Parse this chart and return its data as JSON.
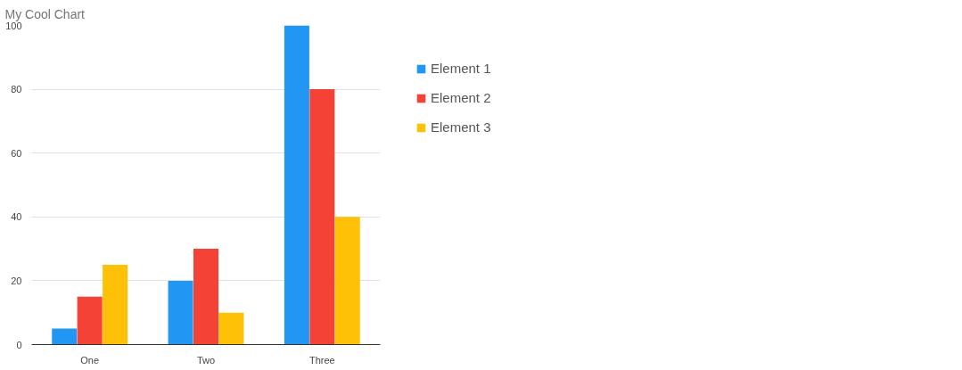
{
  "chart_data": {
    "type": "bar",
    "title": "My Cool Chart",
    "categories": [
      "One",
      "Two",
      "Three"
    ],
    "series": [
      {
        "name": "Element 1",
        "color": "#2196f3",
        "values": [
          5,
          20,
          100
        ]
      },
      {
        "name": "Element 2",
        "color": "#f44336",
        "values": [
          15,
          30,
          80
        ]
      },
      {
        "name": "Element 3",
        "color": "#ffc107",
        "values": [
          25,
          10,
          40
        ]
      }
    ],
    "ylim": [
      0,
      100
    ],
    "yticks": [
      0,
      20,
      40,
      60,
      80,
      100
    ],
    "grid": "y",
    "legend": "top right"
  }
}
